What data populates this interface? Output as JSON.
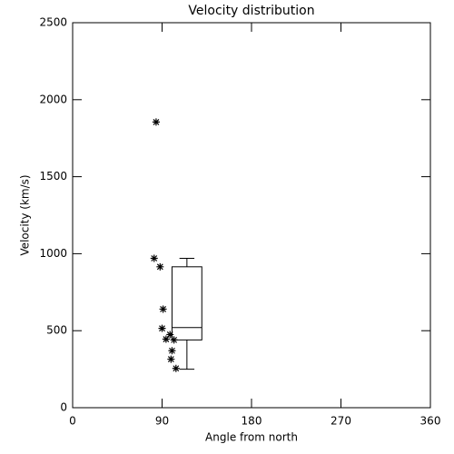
{
  "chart_data": {
    "type": "scatter",
    "title": "Velocity distribution",
    "xlabel": "Angle from north",
    "ylabel": "Velocity (km/s)",
    "x": [
      84,
      82,
      88,
      91,
      90,
      98,
      94,
      102,
      100,
      99,
      104
    ],
    "values": [
      1855,
      970,
      915,
      640,
      515,
      475,
      445,
      440,
      370,
      315,
      255
    ],
    "color": "#000000",
    "box": {
      "x": 115,
      "width": 30,
      "whislo": 250,
      "q1": 440,
      "med": 520,
      "q3": 915,
      "whishi": 970
    },
    "xlim": [
      0,
      360
    ],
    "xticks": [
      0,
      90,
      180,
      270,
      360
    ],
    "ylim": [
      0,
      2500
    ],
    "yticks": [
      0,
      500,
      1000,
      1500,
      2000,
      2500
    ],
    "grid": false
  }
}
